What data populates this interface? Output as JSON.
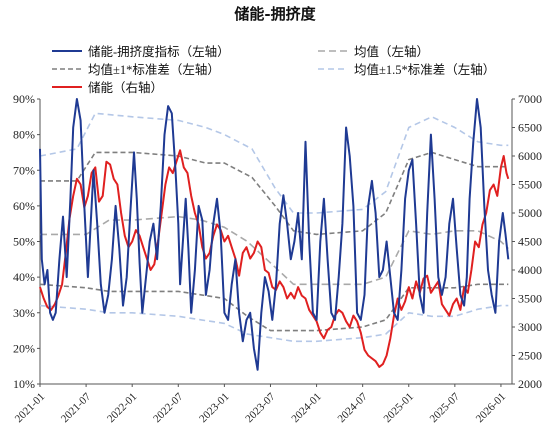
{
  "chart_data": {
    "type": "line",
    "title": "储能-拥挤度",
    "legend_placement": "top",
    "grid": false,
    "x_ticks": [
      "2021-01",
      "2021-07",
      "2022-01",
      "2022-07",
      "2023-01",
      "2023-07",
      "2024-01",
      "2024-07",
      "2025-01",
      "2025-07",
      "2026-01"
    ],
    "y_left": {
      "ticks": [
        "10%",
        "20%",
        "30%",
        "40%",
        "50%",
        "60%",
        "70%",
        "80%",
        "90%"
      ],
      "ylim": [
        10,
        90
      ]
    },
    "y_right": {
      "ticks": [
        "2000",
        "2500",
        "3000",
        "3500",
        "4000",
        "4500",
        "5000",
        "5500",
        "6000",
        "6500",
        "7000"
      ],
      "ylim": [
        2000,
        7000
      ]
    },
    "legend": [
      {
        "key": "crowding",
        "label": "储能-拥挤度指标（左轴）"
      },
      {
        "key": "mean",
        "label": "均值（左轴）"
      },
      {
        "key": "band1",
        "label": "均值±1*标准差（左轴）"
      },
      {
        "key": "band15",
        "label": "均值±1.5*标准差（左轴）"
      },
      {
        "key": "price",
        "label": "储能（右轴）"
      }
    ],
    "colors": {
      "crowding": "#1f3a93",
      "mean": "#a9a9a9",
      "band1": "#7f7f7f",
      "band15": "#b4c7e7",
      "price": "#e02020"
    },
    "series": [
      {
        "name": "储能-拥挤度指标（左轴）",
        "axis": "left",
        "x": [
          2021.0,
          2021.02,
          2021.05,
          2021.08,
          2021.11,
          2021.14,
          2021.17,
          2021.21,
          2021.25,
          2021.29,
          2021.33,
          2021.36,
          2021.4,
          2021.44,
          2021.48,
          2021.52,
          2021.55,
          2021.58,
          2021.62,
          2021.66,
          2021.7,
          2021.74,
          2021.78,
          2021.82,
          2021.86,
          2021.9,
          2021.94,
          2021.98,
          2022.02,
          2022.05,
          2022.08,
          2022.11,
          2022.15,
          2022.19,
          2022.23,
          2022.27,
          2022.31,
          2022.35,
          2022.39,
          2022.43,
          2022.47,
          2022.5,
          2022.52,
          2022.55,
          2022.58,
          2022.61,
          2022.64,
          2022.68,
          2022.72,
          2022.76,
          2022.8,
          2022.84,
          2022.88,
          2022.92,
          2022.96,
          2023.0,
          2023.04,
          2023.08,
          2023.12,
          2023.16,
          2023.2,
          2023.24,
          2023.28,
          2023.32,
          2023.36,
          2023.4,
          2023.44,
          2023.48,
          2023.52,
          2023.56,
          2023.6,
          2023.64,
          2023.68,
          2023.72,
          2023.76,
          2023.8,
          2023.84,
          2023.88,
          2023.92,
          2023.96,
          2024.0,
          2024.04,
          2024.08,
          2024.12,
          2024.16,
          2024.2,
          2024.24,
          2024.28,
          2024.32,
          2024.36,
          2024.4,
          2024.44,
          2024.48,
          2024.52,
          2024.56,
          2024.6,
          2024.64,
          2024.68,
          2024.72,
          2024.76,
          2024.8,
          2024.84,
          2024.88,
          2024.92,
          2024.96,
          2025.0,
          2025.04,
          2025.08,
          2025.12,
          2025.16,
          2025.2,
          2025.24,
          2025.28,
          2025.32,
          2025.36,
          2025.4,
          2025.44,
          2025.48,
          2025.52,
          2025.56,
          2025.6,
          2025.63,
          2025.66,
          2025.7,
          2025.74,
          2025.78,
          2025.82,
          2025.86,
          2025.9,
          2025.94,
          2025.98,
          2026.02,
          2026.05,
          2026.08
        ],
        "values": [
          76,
          45,
          38,
          42,
          30,
          28,
          30,
          45,
          57,
          40,
          62,
          82,
          90,
          84,
          60,
          40,
          55,
          70,
          55,
          38,
          30,
          35,
          45,
          60,
          48,
          32,
          40,
          58,
          75,
          62,
          44,
          30,
          40,
          50,
          55,
          45,
          60,
          80,
          88,
          86,
          70,
          55,
          38,
          50,
          62,
          48,
          30,
          42,
          60,
          56,
          35,
          42,
          55,
          62,
          52,
          30,
          28,
          38,
          45,
          30,
          22,
          28,
          30,
          20,
          14,
          30,
          40,
          36,
          28,
          38,
          55,
          63,
          55,
          45,
          50,
          58,
          45,
          78,
          50,
          30,
          28,
          50,
          62,
          45,
          30,
          28,
          40,
          55,
          82,
          74,
          60,
          30,
          28,
          35,
          60,
          67,
          58,
          40,
          42,
          50,
          40,
          30,
          28,
          42,
          62,
          70,
          73,
          55,
          35,
          30,
          58,
          80,
          62,
          40,
          35,
          40,
          55,
          62,
          48,
          35,
          32,
          40,
          62,
          78,
          90,
          82,
          60,
          42,
          35,
          30,
          50,
          58,
          52,
          45
        ]
      },
      {
        "name": "储能（右轴）",
        "axis": "right",
        "x": [
          2021.0,
          2021.04,
          2021.08,
          2021.12,
          2021.16,
          2021.2,
          2021.24,
          2021.28,
          2021.32,
          2021.36,
          2021.4,
          2021.44,
          2021.48,
          2021.52,
          2021.56,
          2021.6,
          2021.64,
          2021.68,
          2021.72,
          2021.76,
          2021.8,
          2021.84,
          2021.88,
          2021.92,
          2021.96,
          2022.0,
          2022.04,
          2022.08,
          2022.12,
          2022.16,
          2022.2,
          2022.24,
          2022.28,
          2022.32,
          2022.36,
          2022.4,
          2022.44,
          2022.48,
          2022.52,
          2022.56,
          2022.6,
          2022.64,
          2022.68,
          2022.72,
          2022.76,
          2022.8,
          2022.84,
          2022.88,
          2022.92,
          2022.96,
          2023.0,
          2023.04,
          2023.08,
          2023.12,
          2023.16,
          2023.2,
          2023.24,
          2023.28,
          2023.32,
          2023.36,
          2023.4,
          2023.44,
          2023.48,
          2023.52,
          2023.56,
          2023.6,
          2023.64,
          2023.68,
          2023.72,
          2023.76,
          2023.8,
          2023.84,
          2023.88,
          2023.92,
          2023.96,
          2024.0,
          2024.04,
          2024.08,
          2024.12,
          2024.16,
          2024.2,
          2024.24,
          2024.28,
          2024.32,
          2024.36,
          2024.4,
          2024.44,
          2024.48,
          2024.52,
          2024.56,
          2024.6,
          2024.64,
          2024.68,
          2024.72,
          2024.76,
          2024.8,
          2024.84,
          2024.88,
          2024.92,
          2024.96,
          2025.0,
          2025.04,
          2025.08,
          2025.12,
          2025.16,
          2025.2,
          2025.24,
          2025.28,
          2025.32,
          2025.36,
          2025.4,
          2025.44,
          2025.48,
          2025.52,
          2025.56,
          2025.6,
          2025.64,
          2025.68,
          2025.72,
          2025.76,
          2025.8,
          2025.84,
          2025.88,
          2025.92,
          2025.96,
          2026.0,
          2026.03,
          2026.06,
          2026.08
        ],
        "values": [
          3700,
          3500,
          3350,
          3300,
          3400,
          3550,
          3750,
          4300,
          4900,
          5300,
          5600,
          5500,
          5100,
          5300,
          5700,
          5800,
          5200,
          5300,
          5900,
          5850,
          5600,
          5500,
          5000,
          4600,
          4400,
          4500,
          4700,
          4600,
          4400,
          4200,
          4000,
          4100,
          4500,
          5000,
          5500,
          5800,
          5700,
          5900,
          6100,
          5800,
          5700,
          5300,
          5000,
          4800,
          4400,
          4200,
          4300,
          4600,
          4800,
          4700,
          4500,
          4600,
          4400,
          4200,
          3900,
          4300,
          4400,
          4200,
          4300,
          4500,
          4400,
          4000,
          3950,
          3700,
          3650,
          3800,
          3700,
          3500,
          3600,
          3500,
          3700,
          3550,
          3500,
          3300,
          3200,
          3100,
          2900,
          2800,
          2950,
          3000,
          3200,
          3300,
          3250,
          3100,
          3000,
          3200,
          3100,
          2900,
          2600,
          2500,
          2450,
          2400,
          2300,
          2350,
          2500,
          2800,
          3200,
          3500,
          3300,
          3450,
          3700,
          3500,
          3800,
          3600,
          3850,
          3900,
          3600,
          3700,
          3800,
          3400,
          3300,
          3200,
          3400,
          3500,
          3300,
          3700,
          3600,
          4000,
          4500,
          4400,
          4800,
          5000,
          5400,
          5500,
          5300,
          5800,
          6000,
          5700,
          5600
        ]
      },
      {
        "name": "均值（左轴）",
        "axis": "left",
        "x": [
          2021.0,
          2021.5,
          2021.75,
          2022.0,
          2022.5,
          2022.75,
          2023.0,
          2023.25,
          2023.5,
          2023.75,
          2024.0,
          2024.5,
          2024.75,
          2025.0,
          2025.25,
          2025.5,
          2025.75,
          2026.0,
          2026.08
        ],
        "values": [
          52,
          52,
          56,
          56,
          57,
          56,
          54,
          50,
          44,
          38,
          38,
          38,
          40,
          53,
          52,
          53,
          53,
          50,
          48
        ]
      },
      {
        "name": "均值+1*标准差（左轴）",
        "axis": "left",
        "x": [
          2021.0,
          2021.4,
          2021.6,
          2022.0,
          2022.5,
          2022.8,
          2023.0,
          2023.3,
          2023.55,
          2023.75,
          2024.0,
          2024.5,
          2024.75,
          2025.0,
          2025.25,
          2025.5,
          2025.75,
          2026.0,
          2026.08
        ],
        "values": [
          67,
          67,
          75,
          75,
          74,
          72,
          72,
          68,
          60,
          53,
          52,
          53,
          58,
          73,
          75,
          73,
          71,
          71,
          71
        ]
      },
      {
        "name": "均值-1*标准差（左轴）",
        "axis": "left",
        "x": [
          2021.0,
          2021.5,
          2021.75,
          2022.0,
          2022.5,
          2022.75,
          2023.0,
          2023.25,
          2023.5,
          2023.75,
          2024.0,
          2024.5,
          2024.75,
          2025.0,
          2025.25,
          2025.5,
          2025.75,
          2026.0,
          2026.08
        ],
        "values": [
          38,
          37,
          36,
          36,
          36,
          35,
          34,
          29,
          25,
          25,
          25,
          26,
          28,
          37,
          37,
          37,
          38,
          38,
          38
        ]
      },
      {
        "name": "均值+1.5*标准差（左轴）",
        "axis": "left",
        "x": [
          2021.0,
          2021.4,
          2021.6,
          2022.0,
          2022.5,
          2022.8,
          2023.0,
          2023.3,
          2023.55,
          2023.75,
          2024.0,
          2024.5,
          2024.75,
          2025.0,
          2025.25,
          2025.5,
          2025.75,
          2026.0,
          2026.08
        ],
        "values": [
          74,
          76,
          86,
          85,
          84,
          82,
          80,
          76,
          65,
          58,
          58,
          59,
          64,
          82,
          85,
          82,
          78,
          77,
          77
        ]
      },
      {
        "name": "均值-1.5*标准差（左轴）",
        "axis": "left",
        "x": [
          2021.0,
          2021.5,
          2021.75,
          2022.0,
          2022.5,
          2022.75,
          2023.0,
          2023.25,
          2023.5,
          2023.75,
          2024.0,
          2024.5,
          2024.75,
          2025.0,
          2025.25,
          2025.5,
          2025.75,
          2026.0,
          2026.08
        ],
        "values": [
          32,
          31,
          30,
          30,
          29,
          28,
          27,
          24,
          23,
          22,
          22,
          23,
          24,
          30,
          29,
          29,
          31,
          32,
          32
        ]
      }
    ]
  }
}
